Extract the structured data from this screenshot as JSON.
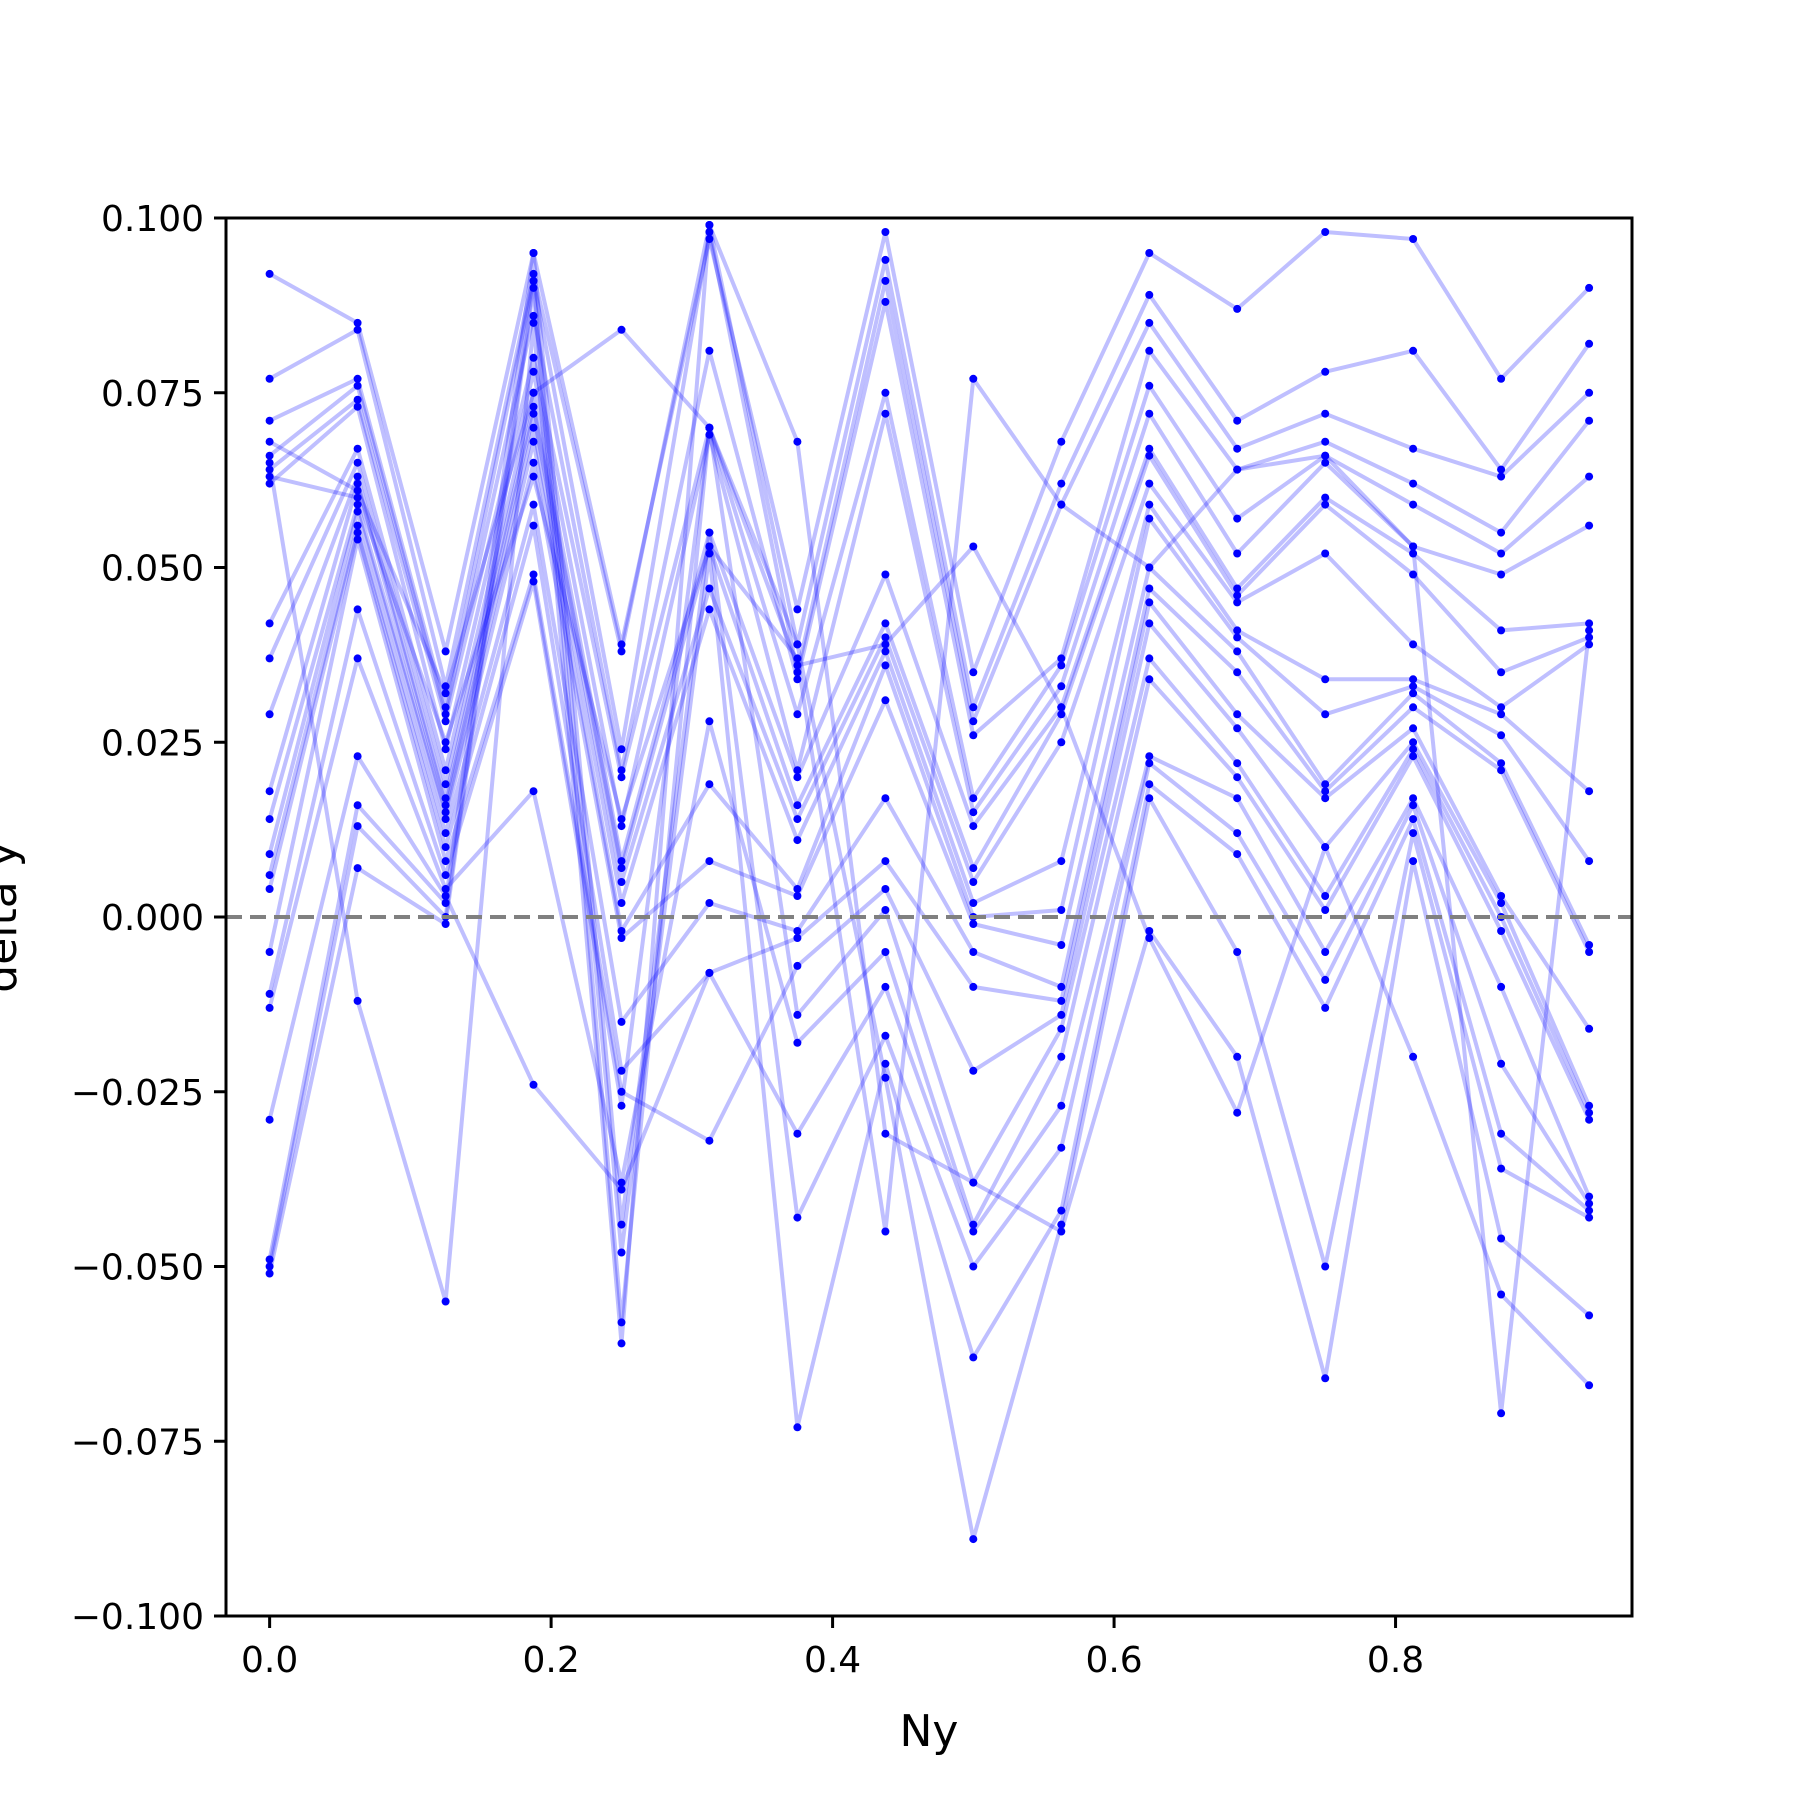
{
  "chart_data": {
    "type": "line",
    "title": "",
    "xlabel": "Ny",
    "ylabel": "delta y",
    "xlim": [
      -0.031,
      0.968
    ],
    "ylim": [
      -0.1,
      0.1
    ],
    "x_ticks": [
      "0.0",
      "0.2",
      "0.4",
      "0.6",
      "0.8"
    ],
    "x_tick_values": [
      0.0,
      0.2,
      0.4,
      0.6,
      0.8
    ],
    "y_ticks": [
      "−0.100",
      "−0.075",
      "−0.050",
      "−0.025",
      "0.000",
      "0.025",
      "0.050",
      "0.075",
      "0.100"
    ],
    "y_tick_values": [
      -0.1,
      -0.075,
      -0.05,
      -0.025,
      0.0,
      0.025,
      0.05,
      0.075,
      0.1
    ],
    "grid": false,
    "legend": "none",
    "reference_line": {
      "y": 0.0,
      "style": "dashed",
      "color": "#808080"
    },
    "line_color": "#0000ff",
    "line_opacity": 0.25,
    "x": [
      0.0,
      0.0625,
      0.125,
      0.1875,
      0.25,
      0.3125,
      0.375,
      0.4375,
      0.5,
      0.5625,
      0.625,
      0.6875,
      0.75,
      0.8125,
      0.875,
      0.9375
    ],
    "series": [
      {
        "values": [
          0.092,
          0.085,
          0.038,
          0.095,
          0.039,
          0.097,
          0.044,
          0.098,
          0.035,
          0.068,
          0.095,
          0.087,
          0.098,
          0.097,
          0.077,
          0.09
        ]
      },
      {
        "values": [
          0.077,
          0.084,
          0.033,
          0.092,
          0.038,
          0.099,
          0.039,
          0.094,
          0.03,
          0.062,
          0.089,
          0.071,
          0.078,
          0.081,
          0.064,
          0.082
        ]
      },
      {
        "values": [
          0.071,
          0.077,
          0.03,
          0.091,
          0.024,
          0.098,
          0.035,
          0.091,
          0.028,
          0.059,
          0.085,
          0.067,
          0.072,
          0.067,
          0.063,
          0.075
        ]
      },
      {
        "values": [
          0.066,
          0.076,
          0.029,
          0.086,
          0.021,
          0.081,
          0.034,
          0.088,
          0.026,
          0.037,
          0.081,
          0.064,
          0.068,
          0.062,
          0.055,
          0.071
        ]
      },
      {
        "values": [
          0.064,
          0.074,
          0.028,
          0.08,
          0.02,
          0.07,
          0.029,
          0.075,
          0.017,
          0.036,
          0.076,
          0.057,
          0.066,
          0.059,
          0.052,
          0.063
        ]
      },
      {
        "values": [
          0.062,
          0.073,
          0.024,
          0.078,
          0.013,
          0.069,
          0.021,
          0.072,
          0.015,
          0.033,
          0.072,
          0.052,
          0.065,
          0.053,
          0.049,
          0.056
        ]
      },
      {
        "values": [
          0.042,
          0.067,
          0.021,
          0.075,
          0.008,
          0.055,
          0.02,
          0.049,
          0.013,
          0.03,
          0.067,
          0.047,
          0.06,
          0.052,
          0.041,
          0.042
        ]
      },
      {
        "values": [
          0.037,
          0.065,
          0.019,
          0.073,
          0.007,
          0.053,
          0.016,
          0.042,
          0.007,
          0.029,
          0.066,
          0.046,
          0.059,
          0.049,
          0.035,
          0.04
        ]
      },
      {
        "values": [
          0.029,
          0.063,
          0.017,
          0.072,
          0.005,
          0.047,
          0.014,
          0.04,
          0.005,
          0.025,
          0.062,
          0.045,
          0.052,
          0.039,
          0.03,
          0.039
        ]
      },
      {
        "values": [
          0.018,
          0.062,
          0.016,
          0.07,
          0.002,
          0.044,
          0.011,
          0.038,
          0.002,
          0.008,
          0.059,
          0.041,
          0.034,
          0.034,
          0.029,
          0.018
        ]
      },
      {
        "values": [
          0.014,
          0.059,
          0.015,
          0.068,
          -0.002,
          0.019,
          0.004,
          0.036,
          0.0,
          0.001,
          0.057,
          0.04,
          0.029,
          0.033,
          0.026,
          0.008
        ]
      },
      {
        "values": [
          0.009,
          0.058,
          0.014,
          0.065,
          -0.003,
          0.008,
          0.003,
          0.031,
          -0.001,
          -0.004,
          0.05,
          0.038,
          0.019,
          0.032,
          0.022,
          -0.004
        ]
      },
      {
        "values": [
          0.006,
          0.056,
          0.012,
          0.059,
          -0.015,
          0.002,
          -0.002,
          0.017,
          -0.005,
          -0.01,
          0.047,
          0.035,
          0.018,
          0.03,
          0.021,
          -0.005
        ]
      },
      {
        "values": [
          0.004,
          0.055,
          0.01,
          0.056,
          -0.022,
          -0.008,
          -0.003,
          0.008,
          -0.01,
          -0.012,
          0.045,
          0.029,
          0.017,
          0.027,
          0.003,
          -0.016
        ]
      },
      {
        "values": [
          -0.005,
          0.054,
          0.008,
          0.049,
          -0.025,
          -0.032,
          -0.007,
          0.004,
          -0.022,
          -0.014,
          0.042,
          0.027,
          0.01,
          0.025,
          0.002,
          -0.027
        ]
      },
      {
        "values": [
          -0.011,
          0.044,
          0.006,
          0.048,
          -0.027,
          0.07,
          -0.014,
          0.001,
          -0.038,
          -0.016,
          0.037,
          0.022,
          0.003,
          0.024,
          0.0,
          -0.028
        ]
      },
      {
        "values": [
          -0.013,
          0.037,
          0.004,
          0.018,
          -0.038,
          0.028,
          -0.018,
          -0.005,
          -0.044,
          -0.02,
          0.034,
          0.02,
          0.001,
          0.023,
          -0.002,
          -0.029
        ]
      },
      {
        "values": [
          -0.029,
          0.023,
          0.003,
          -0.024,
          -0.039,
          -0.008,
          -0.031,
          -0.01,
          -0.045,
          -0.027,
          0.023,
          0.017,
          -0.005,
          0.017,
          -0.01,
          -0.04
        ]
      },
      {
        "values": [
          -0.049,
          0.016,
          0.002,
          0.095,
          -0.044,
          0.055,
          -0.043,
          -0.017,
          -0.05,
          -0.033,
          0.022,
          0.012,
          -0.009,
          0.016,
          -0.021,
          -0.041
        ]
      },
      {
        "values": [
          -0.05,
          0.013,
          0.0,
          0.091,
          -0.048,
          0.052,
          -0.073,
          -0.021,
          -0.063,
          -0.042,
          0.019,
          0.009,
          -0.013,
          0.014,
          -0.031,
          -0.042
        ]
      },
      {
        "values": [
          -0.051,
          0.007,
          -0.001,
          0.09,
          -0.058,
          0.07,
          0.039,
          -0.023,
          -0.089,
          -0.044,
          0.017,
          -0.005,
          -0.05,
          0.012,
          -0.036,
          -0.043
        ]
      },
      {
        "values": [
          0.065,
          -0.012,
          -0.055,
          0.085,
          -0.061,
          0.099,
          0.068,
          -0.031,
          -0.038,
          -0.045,
          -0.002,
          -0.02,
          -0.066,
          0.008,
          -0.046,
          -0.057
        ]
      },
      {
        "values": [
          0.068,
          0.061,
          0.032,
          0.075,
          0.084,
          0.07,
          0.036,
          0.039,
          0.053,
          0.03,
          -0.003,
          -0.028,
          0.01,
          -0.02,
          -0.054,
          -0.067
        ]
      },
      {
        "values": [
          0.063,
          0.06,
          0.025,
          0.063,
          0.014,
          0.053,
          0.037,
          -0.045,
          0.077,
          0.059,
          0.05,
          0.064,
          0.066,
          0.053,
          -0.071,
          0.041
        ]
      }
    ]
  }
}
